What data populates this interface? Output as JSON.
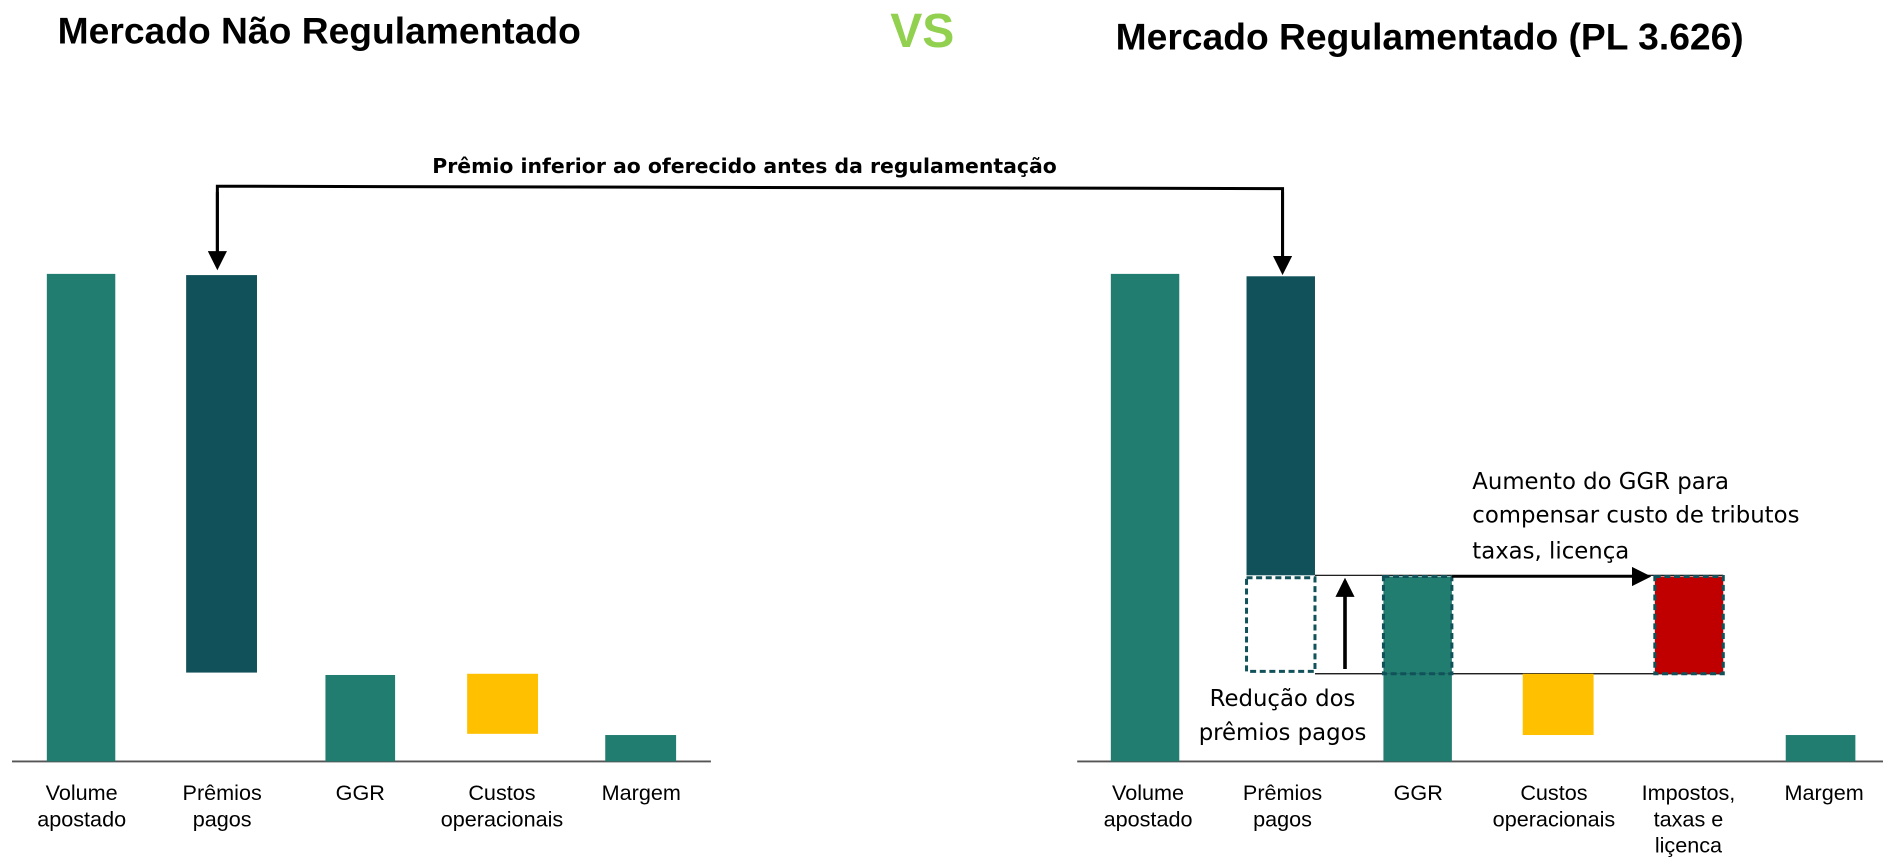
{
  "header": {
    "left_title": "Mercado Não Regulamentado",
    "vs": "VS",
    "right_title": "Mercado Regulamentado (PL 3.626)"
  },
  "annotation_top": "Prêmio inferior ao oferecido antes da regulamentação",
  "annotation_ggr": [
    "Aumento do GGR para",
    "compensar custo de tributos",
    "taxas, licença"
  ],
  "annotation_reduction": [
    "Redução dos",
    "prêmios pagos"
  ],
  "left_chart": {
    "labels": [
      [
        "Volume",
        "apostado"
      ],
      [
        "Prêmios",
        "pagos"
      ],
      [
        "GGR"
      ],
      [
        "Custos",
        "operacionais"
      ],
      [
        "Margem"
      ]
    ]
  },
  "right_chart": {
    "labels": [
      [
        "Volume",
        "apostado"
      ],
      [
        "Prêmios",
        "pagos"
      ],
      [
        "GGR"
      ],
      [
        "Custos",
        "operacionais"
      ],
      [
        "Impostos,",
        "taxas e",
        "liçenca"
      ],
      [
        "Margem"
      ]
    ]
  }
}
